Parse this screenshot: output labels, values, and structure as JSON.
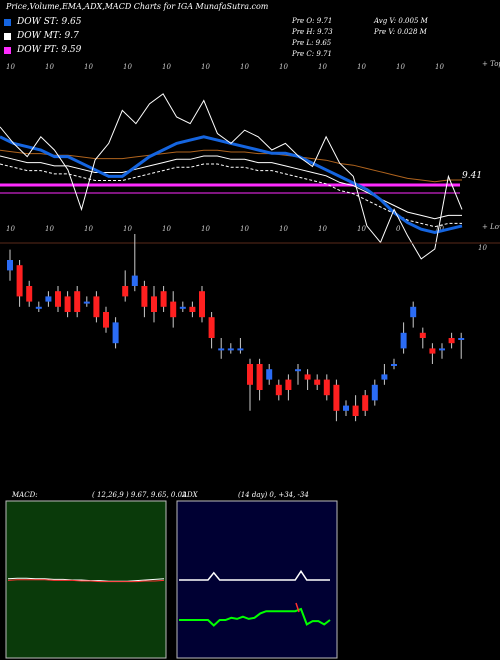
{
  "header": {
    "title": "Price,Volume,EMA,ADX,MACD Charts for IGA MunafaSutra.com"
  },
  "legend": [
    {
      "label": "DOW ST: 9.65",
      "color": "#1565e0"
    },
    {
      "label": "DOW MT: 9.7",
      "color": "#ffffff"
    },
    {
      "label": "DOW PT: 9.59",
      "color": "#ff2cff"
    }
  ],
  "stats": {
    "col1": [
      "Pre  O: 9.71",
      "Pre  H: 9.73",
      "Pre  L: 9.65",
      "Pre  C: 9.71"
    ],
    "col2": [
      "Avg V: 0.005 M",
      "Pre  V: 0.028 M"
    ]
  },
  "top_chart": {
    "top_label": "+ Tops",
    "bottom_label": "+ Lows",
    "price_label": "9.41",
    "top_ticks": [
      "10",
      "10",
      "10",
      "10",
      "10",
      "10",
      "10",
      "10",
      "10",
      "10",
      "10",
      "10"
    ],
    "bottom_ticks": [
      "10",
      "10",
      "10",
      "10",
      "10",
      "10",
      "10",
      "10",
      "10",
      "10",
      "0",
      "10"
    ],
    "colors": {
      "white": "#ffffff",
      "blue": "#1565e0",
      "orange": "#b0641e",
      "magenta": "#ff2cff"
    }
  },
  "candle_chart": {
    "price_label": "10",
    "colors": {
      "up": "#2b6cf5",
      "down": "#ff2020"
    }
  },
  "macd": {
    "label": "MACD:",
    "params": "( 12,26,9 ) 9.67, 9.65, 0.02",
    "colors": {
      "panel": "#0a3a0a",
      "macd": "#ffffff",
      "signal": "#ff3030"
    }
  },
  "adx": {
    "label": "ADX",
    "params": "(14 day) 0, +34, -34",
    "colors": {
      "panel": "#000033",
      "adx": "#ffffff",
      "pdi": "#00ff00",
      "mdi": "#ff3030"
    }
  },
  "chart_data": [
    {
      "type": "line",
      "title": "Price,Volume,EMA,ADX,MACD Charts for IGA MunafaSutra.com",
      "series": [
        {
          "name": "DOW ST: 9.65",
          "values": [
            9.92,
            9.9,
            9.89,
            9.88,
            9.86,
            9.86,
            9.84,
            9.82,
            9.8,
            9.8,
            9.83,
            9.86,
            9.88,
            9.9,
            9.91,
            9.92,
            9.91,
            9.9,
            9.89,
            9.88,
            9.87,
            9.87,
            9.86,
            9.84,
            9.82,
            9.8,
            9.78,
            9.76,
            9.73,
            9.69,
            9.66,
            9.64,
            9.63,
            9.64,
            9.65
          ]
        },
        {
          "name": "DOW MT: 9.7",
          "values": [
            9.88,
            9.87,
            9.86,
            9.86,
            9.85,
            9.85,
            9.84,
            9.83,
            9.83,
            9.83,
            9.84,
            9.85,
            9.86,
            9.87,
            9.87,
            9.88,
            9.88,
            9.87,
            9.87,
            9.86,
            9.86,
            9.85,
            9.84,
            9.83,
            9.82,
            9.8,
            9.79,
            9.77,
            9.75,
            9.73,
            9.71,
            9.7,
            9.69,
            9.7,
            9.7
          ]
        },
        {
          "name": "DOW PT: 9.59",
          "values": [
            9.59,
            9.59,
            9.59,
            9.59,
            9.59,
            9.59,
            9.59,
            9.59,
            9.59,
            9.59,
            9.59,
            9.59,
            9.59,
            9.59,
            9.59,
            9.59,
            9.59,
            9.59,
            9.59,
            9.59,
            9.59,
            9.59,
            9.59,
            9.59,
            9.59,
            9.59,
            9.59,
            9.59,
            9.59,
            9.59,
            9.59,
            9.59,
            9.59,
            9.59,
            9.59
          ]
        }
      ],
      "price_line": [
        9.95,
        9.9,
        9.86,
        9.92,
        9.88,
        9.82,
        9.7,
        9.85,
        9.9,
        10.0,
        9.96,
        10.02,
        10.05,
        9.98,
        9.96,
        10.03,
        9.93,
        9.9,
        9.94,
        9.92,
        9.88,
        9.9,
        9.86,
        9.83,
        9.92,
        9.84,
        9.8,
        9.65,
        9.6,
        9.7,
        9.62,
        9.55,
        9.58,
        9.8,
        9.7
      ]
    },
    {
      "type": "candlestick",
      "candles": [
        {
          "o": 9.95,
          "h": 9.99,
          "l": 9.93,
          "c": 9.97
        },
        {
          "o": 9.96,
          "h": 9.97,
          "l": 9.88,
          "c": 9.9
        },
        {
          "o": 9.92,
          "h": 9.93,
          "l": 9.88,
          "c": 9.89
        },
        {
          "o": 9.88,
          "h": 9.89,
          "l": 9.87,
          "c": 9.88
        },
        {
          "o": 9.89,
          "h": 9.91,
          "l": 9.88,
          "c": 9.9
        },
        {
          "o": 9.91,
          "h": 9.92,
          "l": 9.87,
          "c": 9.88
        },
        {
          "o": 9.9,
          "h": 9.91,
          "l": 9.86,
          "c": 9.87
        },
        {
          "o": 9.91,
          "h": 9.92,
          "l": 9.86,
          "c": 9.87
        },
        {
          "o": 9.89,
          "h": 9.9,
          "l": 9.88,
          "c": 9.89
        },
        {
          "o": 9.9,
          "h": 9.91,
          "l": 9.85,
          "c": 9.86
        },
        {
          "o": 9.87,
          "h": 9.88,
          "l": 9.83,
          "c": 9.84
        },
        {
          "o": 9.81,
          "h": 9.86,
          "l": 9.8,
          "c": 9.85
        },
        {
          "o": 9.92,
          "h": 9.95,
          "l": 9.89,
          "c": 9.9
        },
        {
          "o": 9.92,
          "h": 10.02,
          "l": 9.91,
          "c": 9.94
        },
        {
          "o": 9.92,
          "h": 9.93,
          "l": 9.86,
          "c": 9.88
        },
        {
          "o": 9.9,
          "h": 9.92,
          "l": 9.85,
          "c": 9.87
        },
        {
          "o": 9.91,
          "h": 9.92,
          "l": 9.87,
          "c": 9.88
        },
        {
          "o": 9.89,
          "h": 9.91,
          "l": 9.84,
          "c": 9.86
        },
        {
          "o": 9.88,
          "h": 9.89,
          "l": 9.87,
          "c": 9.88
        },
        {
          "o": 9.88,
          "h": 9.89,
          "l": 9.86,
          "c": 9.87
        },
        {
          "o": 9.91,
          "h": 9.92,
          "l": 9.85,
          "c": 9.86
        },
        {
          "o": 9.86,
          "h": 9.87,
          "l": 9.8,
          "c": 9.82
        },
        {
          "o": 9.8,
          "h": 9.82,
          "l": 9.78,
          "c": 9.8
        },
        {
          "o": 9.8,
          "h": 9.81,
          "l": 9.79,
          "c": 9.8
        },
        {
          "o": 9.8,
          "h": 9.82,
          "l": 9.79,
          "c": 9.8
        },
        {
          "o": 9.77,
          "h": 9.78,
          "l": 9.68,
          "c": 9.73
        },
        {
          "o": 9.77,
          "h": 9.78,
          "l": 9.7,
          "c": 9.72
        },
        {
          "o": 9.74,
          "h": 9.77,
          "l": 9.73,
          "c": 9.76
        },
        {
          "o": 9.73,
          "h": 9.74,
          "l": 9.7,
          "c": 9.71
        },
        {
          "o": 9.74,
          "h": 9.75,
          "l": 9.7,
          "c": 9.72
        },
        {
          "o": 9.76,
          "h": 9.77,
          "l": 9.73,
          "c": 9.76
        },
        {
          "o": 9.75,
          "h": 9.76,
          "l": 9.72,
          "c": 9.74
        },
        {
          "o": 9.74,
          "h": 9.75,
          "l": 9.72,
          "c": 9.73
        },
        {
          "o": 9.74,
          "h": 9.75,
          "l": 9.7,
          "c": 9.71
        },
        {
          "o": 9.73,
          "h": 9.74,
          "l": 9.66,
          "c": 9.68
        },
        {
          "o": 9.68,
          "h": 9.7,
          "l": 9.67,
          "c": 9.69
        },
        {
          "o": 9.69,
          "h": 9.71,
          "l": 9.66,
          "c": 9.67
        },
        {
          "o": 9.71,
          "h": 9.72,
          "l": 9.67,
          "c": 9.68
        },
        {
          "o": 9.7,
          "h": 9.74,
          "l": 9.69,
          "c": 9.73
        },
        {
          "o": 9.74,
          "h": 9.77,
          "l": 9.73,
          "c": 9.75
        },
        {
          "o": 9.77,
          "h": 9.78,
          "l": 9.76,
          "c": 9.77
        },
        {
          "o": 9.8,
          "h": 9.85,
          "l": 9.79,
          "c": 9.83
        },
        {
          "o": 9.86,
          "h": 9.89,
          "l": 9.84,
          "c": 9.88
        },
        {
          "o": 9.83,
          "h": 9.84,
          "l": 9.8,
          "c": 9.82
        },
        {
          "o": 9.8,
          "h": 9.81,
          "l": 9.77,
          "c": 9.79
        },
        {
          "o": 9.8,
          "h": 9.81,
          "l": 9.78,
          "c": 9.8
        },
        {
          "o": 9.82,
          "h": 9.83,
          "l": 9.8,
          "c": 9.81
        },
        {
          "o": 9.82,
          "h": 9.83,
          "l": 9.78,
          "c": 9.82
        }
      ]
    },
    {
      "type": "line",
      "title": "MACD: ( 12,26,9 ) 9.67, 9.65, 0.02",
      "series": [
        {
          "name": "MACD",
          "values": [
            0.02,
            0.03,
            0.03,
            0.02,
            0.02,
            0.01,
            0.01,
            0.0,
            0.0,
            -0.01,
            -0.01,
            -0.02,
            -0.02,
            -0.02,
            -0.01,
            0.0,
            0.01,
            0.02
          ]
        },
        {
          "name": "Signal",
          "values": [
            0.01,
            0.02,
            0.02,
            0.02,
            0.02,
            0.01,
            0.01,
            0.01,
            0.0,
            0.0,
            -0.01,
            -0.01,
            -0.01,
            -0.01,
            -0.01,
            0.0,
            0.0,
            0.01
          ]
        }
      ]
    },
    {
      "type": "line",
      "title": "ADX (14 day) 0, +34, -34",
      "series": [
        {
          "name": "ADX",
          "values": [
            0,
            0,
            0,
            0,
            0,
            0,
            9,
            0,
            0,
            0,
            0,
            0,
            0,
            0,
            0,
            0,
            0,
            0,
            0,
            0,
            0,
            11,
            0,
            0,
            0,
            0,
            0
          ]
        },
        {
          "name": "+DI",
          "values": [
            34,
            34,
            34,
            34,
            34,
            34,
            29,
            34,
            34,
            36,
            35,
            37,
            35,
            36,
            40,
            42,
            42,
            42,
            42,
            42,
            42,
            44,
            30,
            33,
            33,
            30,
            34
          ]
        }
      ]
    }
  ]
}
